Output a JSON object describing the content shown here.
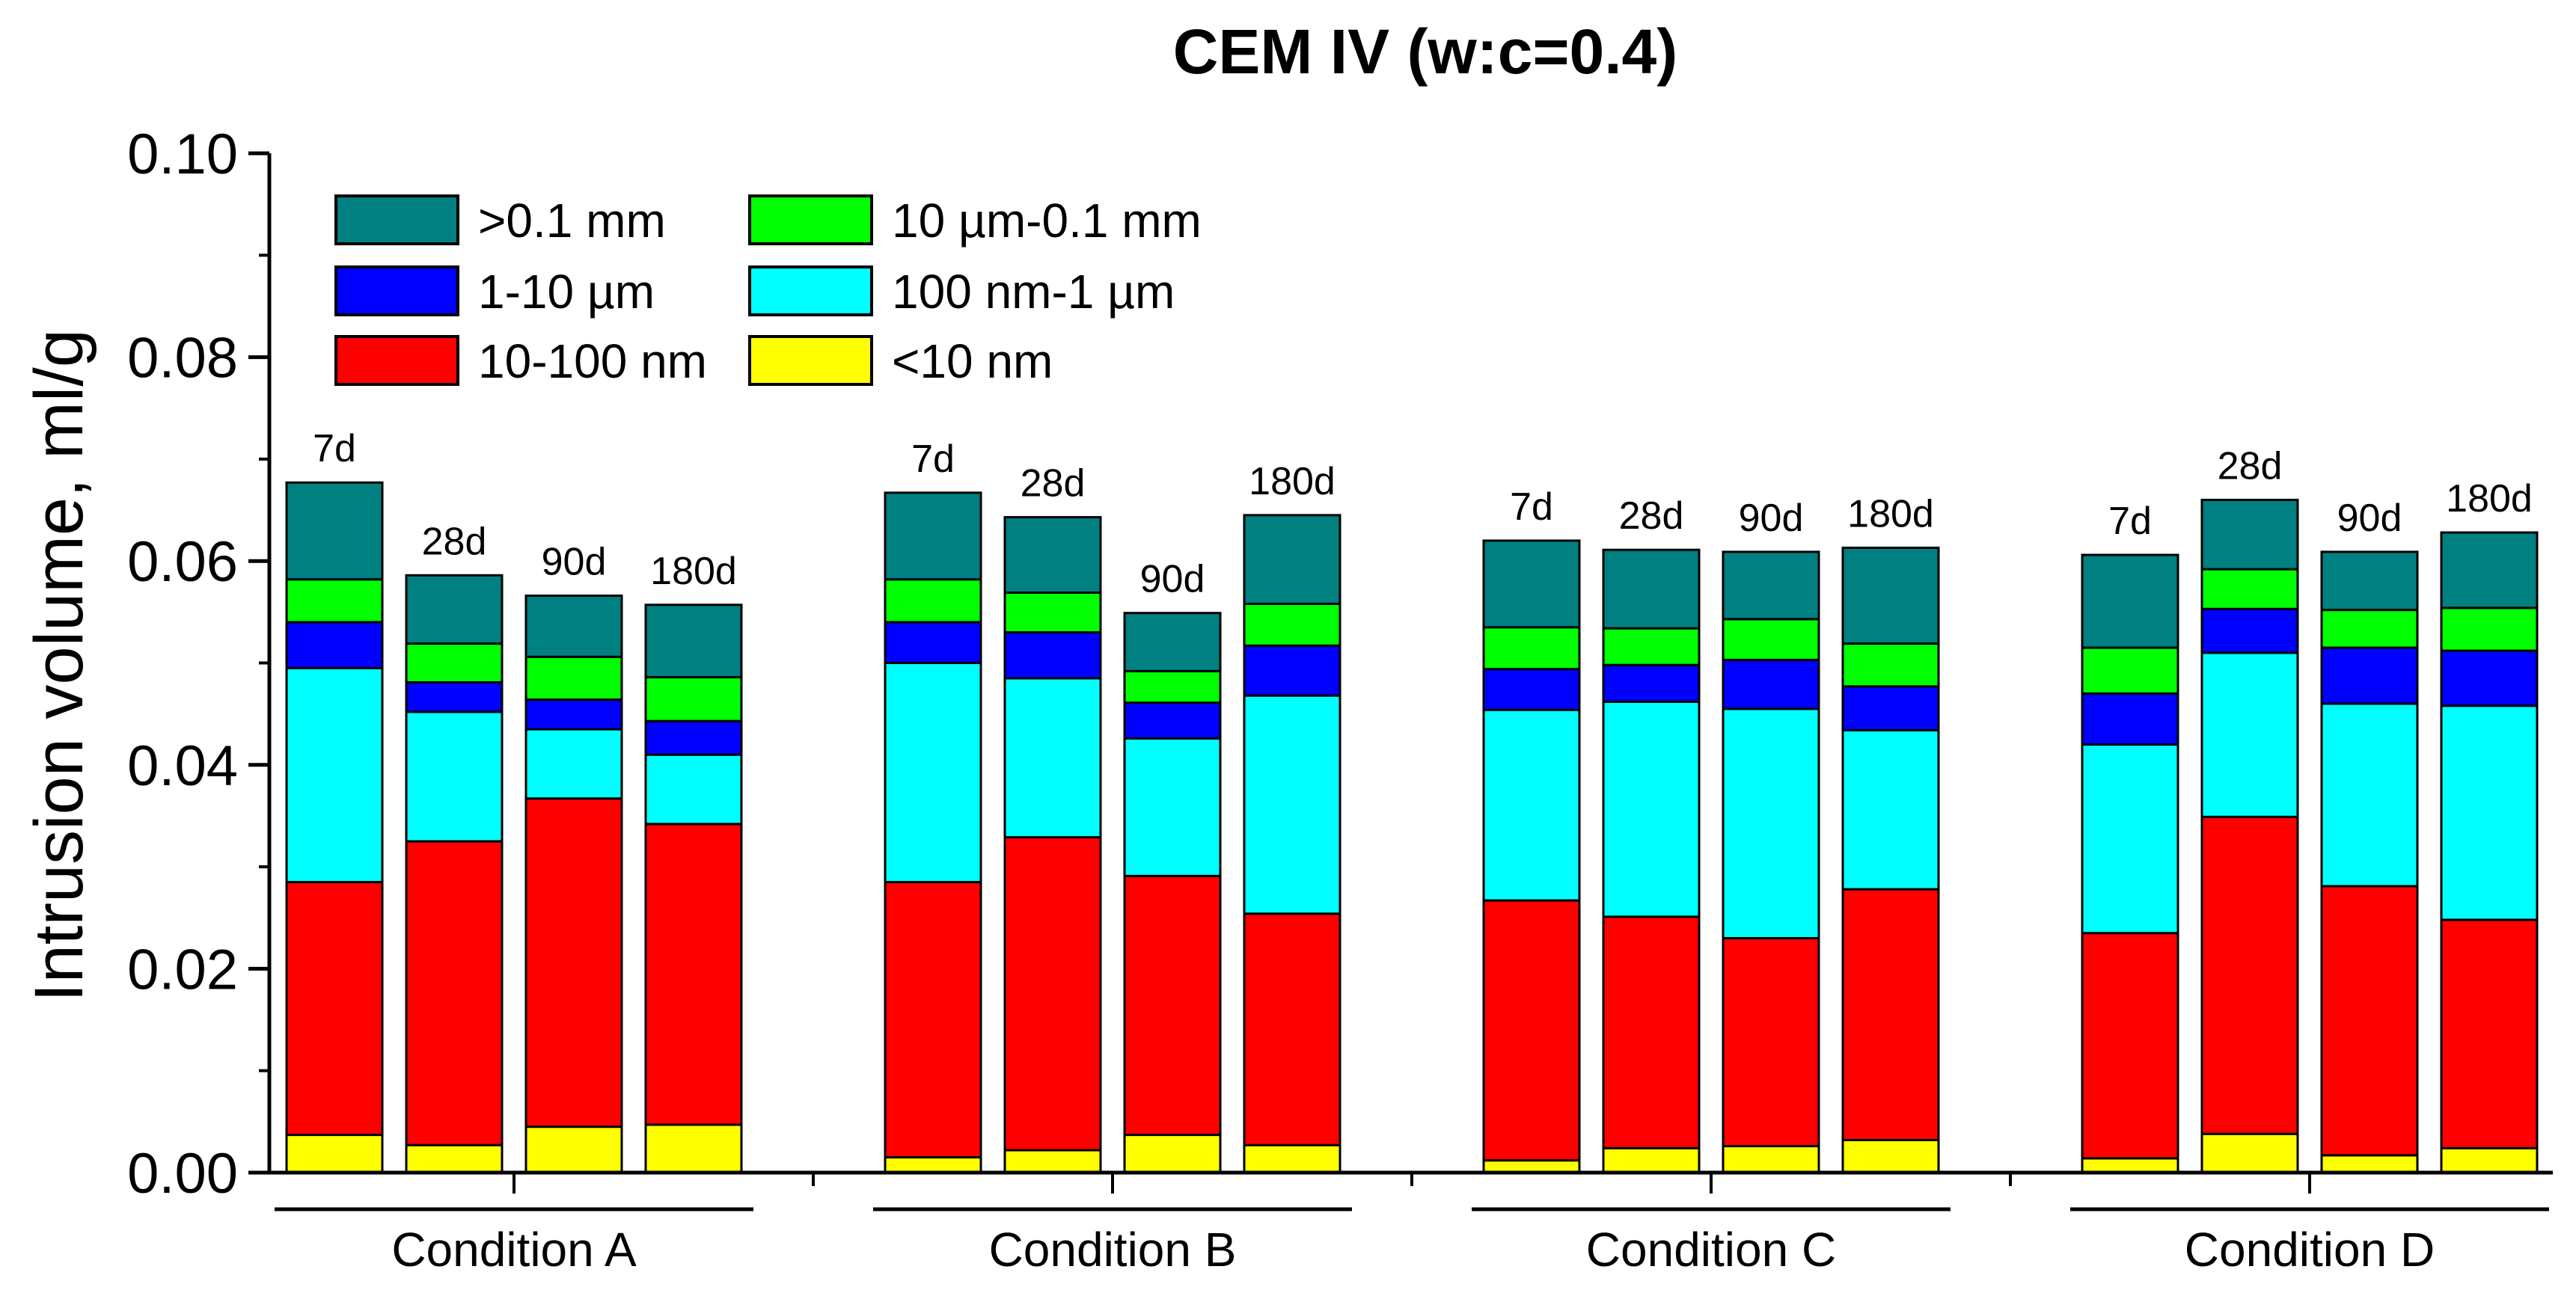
{
  "chart_data": {
    "type": "bar",
    "stacked": true,
    "title": "CEM IV (w:c=0.4)",
    "ylabel": "Intrusion volume, ml/g",
    "xlabel": "",
    "ylim": [
      0,
      0.1
    ],
    "yticks": [
      "0.00",
      "0.02",
      "0.04",
      "0.06",
      "0.08",
      "0.10"
    ],
    "groups": [
      {
        "name": "Condition A",
        "bars": [
          {
            "label": "7d",
            "values": [
              0.0037,
              0.0248,
              0.021,
              0.0045,
              0.0042,
              0.0095
            ]
          },
          {
            "label": "28d",
            "values": [
              0.0027,
              0.0298,
              0.0127,
              0.0029,
              0.0038,
              0.0067
            ]
          },
          {
            "label": "90d",
            "values": [
              0.0045,
              0.0322,
              0.0068,
              0.0029,
              0.0042,
              0.006
            ]
          },
          {
            "label": "180d",
            "values": [
              0.0047,
              0.0295,
              0.0068,
              0.0033,
              0.0043,
              0.0071
            ]
          }
        ]
      },
      {
        "name": "Condition B",
        "bars": [
          {
            "label": "7d",
            "values": [
              0.0015,
              0.027,
              0.0215,
              0.004,
              0.0042,
              0.0085
            ]
          },
          {
            "label": "28d",
            "values": [
              0.0022,
              0.0307,
              0.0156,
              0.0045,
              0.0039,
              0.0074
            ]
          },
          {
            "label": "90d",
            "values": [
              0.0037,
              0.0254,
              0.0135,
              0.0035,
              0.0031,
              0.0057
            ]
          },
          {
            "label": "180d",
            "values": [
              0.0027,
              0.0227,
              0.0214,
              0.0049,
              0.0041,
              0.0087
            ]
          }
        ]
      },
      {
        "name": "Condition C",
        "bars": [
          {
            "label": "7d",
            "values": [
              0.0012,
              0.0255,
              0.0187,
              0.004,
              0.0041,
              0.0085
            ]
          },
          {
            "label": "28d",
            "values": [
              0.0024,
              0.0227,
              0.0211,
              0.0036,
              0.0036,
              0.0077
            ]
          },
          {
            "label": "90d",
            "values": [
              0.0026,
              0.0204,
              0.0225,
              0.0048,
              0.004,
              0.0066
            ]
          },
          {
            "label": "180d",
            "values": [
              0.0032,
              0.0246,
              0.0156,
              0.0043,
              0.0042,
              0.0094
            ]
          }
        ]
      },
      {
        "name": "Condition D",
        "bars": [
          {
            "label": "7d",
            "values": [
              0.0014,
              0.0221,
              0.0185,
              0.005,
              0.0045,
              0.0091
            ]
          },
          {
            "label": "28d",
            "values": [
              0.0038,
              0.0311,
              0.0161,
              0.0043,
              0.0039,
              0.0068
            ]
          },
          {
            "label": "90d",
            "values": [
              0.0017,
              0.0264,
              0.0179,
              0.0055,
              0.0037,
              0.0057
            ]
          },
          {
            "label": "180d",
            "values": [
              0.0024,
              0.0224,
              0.021,
              0.0054,
              0.0042,
              0.0074
            ]
          }
        ]
      }
    ],
    "series": [
      {
        "name": "<10 nm",
        "color": "#ffff00"
      },
      {
        "name": "10-100 nm",
        "color": "#ff0000"
      },
      {
        "name": "100 nm-1 µm",
        "color": "#00ffff"
      },
      {
        "name": "1-10 µm",
        "color": "#0000ff"
      },
      {
        "name": "10 µm-0.1 mm",
        "color": "#00ff00"
      },
      {
        "name": ">0.1 mm",
        "color": "#008080"
      }
    ],
    "legend_order": [
      5,
      4,
      3,
      2,
      1,
      0
    ],
    "legend_position": "top-left",
    "grid": false
  }
}
